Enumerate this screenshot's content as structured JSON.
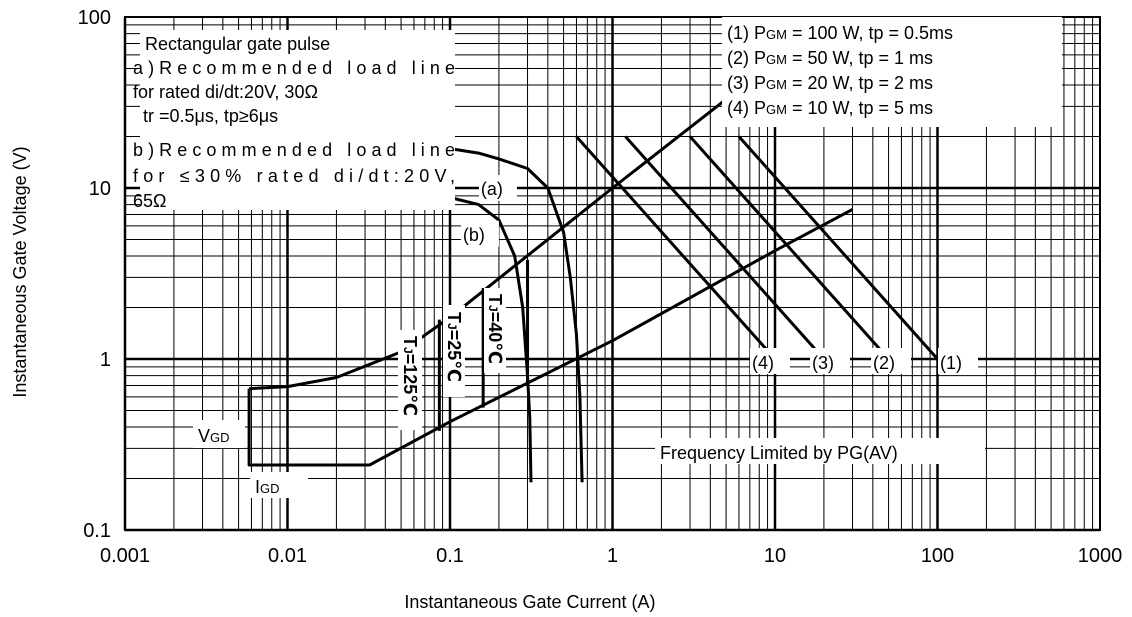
{
  "chart_data": {
    "type": "line",
    "x_scale": "log",
    "y_scale": "log",
    "xlim": [
      0.001,
      1000
    ],
    "ylim": [
      0.1,
      100
    ],
    "grid": true,
    "xlabel": "Instantaneous Gate Current (A)",
    "ylabel": "Instantaneous Gate Voltage (V)",
    "x_ticks": [
      "0.001",
      "0.01",
      "0.1",
      "1",
      "10",
      "100",
      "1000"
    ],
    "y_ticks": [
      "0.1",
      "1",
      "10",
      "100"
    ],
    "notes_left": [
      "Rectangular gate pulse",
      "a)Recommended   load   line",
      "for rated di/dt:20V, 30Ω",
      "  tr =0.5μs, tp≥6μs",
      "b)Recommended   load   line",
      "for   ≤30%   rated   di/dt:20V,",
      "65Ω"
    ],
    "power_legend": [
      {
        "id": "(1)",
        "pgm": "100 W",
        "tp": "tp = 0.5ms"
      },
      {
        "id": "(2)",
        "pgm": "50 W",
        "tp": "tp = 1 ms"
      },
      {
        "id": "(3)",
        "pgm": "20 W",
        "tp": "tp = 2 ms"
      },
      {
        "id": "(4)",
        "pgm": "10 W",
        "tp": "tp = 5 ms"
      }
    ],
    "pgm_prefix": "P",
    "pgm_sub": "GM",
    "pgm_eq": " = ",
    "frequency_note": "Frequency Limited by PG(AV)",
    "vgd_label": {
      "main": "V",
      "sub": "GD"
    },
    "igd_label": {
      "main": "I",
      "sub": "GD"
    },
    "curve_labels": [
      {
        "id": "a",
        "text": "(a)",
        "x": 0.2,
        "y": 10
      },
      {
        "id": "b",
        "text": "(b)",
        "x": 0.155,
        "y": 5.4
      }
    ],
    "tj_labels": [
      "Tⱼ=125℃",
      "Tⱼ=25℃",
      "Tⱼ=40℃"
    ],
    "tj_main": "T",
    "tj_sub": "J",
    "tj_values": [
      "=125℃",
      "=25℃",
      "=40℃"
    ],
    "series": [
      {
        "name": "(a)",
        "points": [
          [
            0.1,
            17
          ],
          [
            0.15,
            16
          ],
          [
            0.2,
            14.8
          ],
          [
            0.3,
            13
          ],
          [
            0.4,
            10
          ],
          [
            0.5,
            5.5
          ],
          [
            0.55,
            3
          ],
          [
            0.6,
            1.4
          ],
          [
            0.63,
            0.6
          ],
          [
            0.65,
            0.19
          ]
        ]
      },
      {
        "name": "(b)",
        "points": [
          [
            0.1,
            8.8
          ],
          [
            0.15,
            8
          ],
          [
            0.2,
            6.5
          ],
          [
            0.25,
            4
          ],
          [
            0.28,
            2
          ],
          [
            0.3,
            0.8
          ],
          [
            0.31,
            0.45
          ],
          [
            0.315,
            0.19
          ]
        ]
      },
      {
        "name": "Tj=125℃",
        "points": [
          [
            0.0058,
            0.67
          ],
          [
            0.0058,
            0.24
          ],
          [
            0.032,
            0.24
          ],
          [
            0.1,
            0.43
          ],
          [
            1,
            1.28
          ],
          [
            10,
            4.3
          ],
          [
            30,
            7.5
          ]
        ]
      },
      {
        "name": "upper-envelope",
        "points": [
          [
            0.0058,
            0.67
          ],
          [
            0.01,
            0.69
          ],
          [
            0.02,
            0.78
          ],
          [
            0.05,
            1.1
          ],
          [
            0.1,
            1.75
          ],
          [
            1,
            10
          ],
          [
            5,
            33
          ]
        ]
      },
      {
        "name": "(1)",
        "points": [
          [
            6,
            20
          ],
          [
            100,
            1
          ]
        ]
      },
      {
        "name": "(2)",
        "points": [
          [
            3,
            20
          ],
          [
            50,
            1
          ]
        ]
      },
      {
        "name": "(3)",
        "points": [
          [
            1.2,
            20
          ],
          [
            20,
            1
          ]
        ]
      },
      {
        "name": "(4)",
        "points": [
          [
            0.6,
            20
          ],
          [
            10,
            1
          ]
        ]
      }
    ],
    "tj_verticals": [
      {
        "name": "Tj=125℃",
        "x": 0.086,
        "y": [
          0.38,
          1.7
        ]
      },
      {
        "name": "Tj=25℃",
        "x": 0.16,
        "y": [
          0.52,
          2.6
        ]
      },
      {
        "name": "Tj=40℃",
        "x": 0.3,
        "y": [
          0.7,
          3.8
        ]
      }
    ],
    "power_curve_labels": [
      "(4)",
      "(3)",
      "(2)",
      "(1)"
    ]
  }
}
